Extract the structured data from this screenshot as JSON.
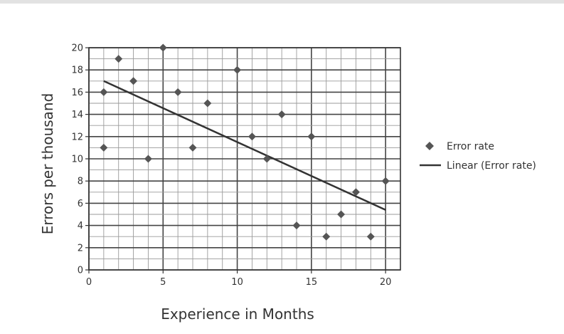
{
  "chart_data": {
    "type": "scatter",
    "xlabel": "Experience in Months",
    "ylabel": "Errors per thousand",
    "xlim": [
      0,
      21
    ],
    "ylim": [
      0,
      20
    ],
    "xticks": [
      0,
      5,
      10,
      15,
      20
    ],
    "yticks": [
      0,
      2,
      4,
      6,
      8,
      10,
      12,
      14,
      16,
      18,
      20
    ],
    "grid": true,
    "legend_position": "right",
    "series": [
      {
        "name": "Error rate",
        "marker": "diamond",
        "color": "#555555",
        "points": [
          {
            "x": 1,
            "y": 16
          },
          {
            "x": 1,
            "y": 11
          },
          {
            "x": 2,
            "y": 19
          },
          {
            "x": 3,
            "y": 17
          },
          {
            "x": 4,
            "y": 10
          },
          {
            "x": 5,
            "y": 20
          },
          {
            "x": 6,
            "y": 16
          },
          {
            "x": 7,
            "y": 11
          },
          {
            "x": 8,
            "y": 15
          },
          {
            "x": 10,
            "y": 18
          },
          {
            "x": 11,
            "y": 12
          },
          {
            "x": 12,
            "y": 10
          },
          {
            "x": 13,
            "y": 14
          },
          {
            "x": 14,
            "y": 4
          },
          {
            "x": 15,
            "y": 12
          },
          {
            "x": 16,
            "y": 3
          },
          {
            "x": 17,
            "y": 5
          },
          {
            "x": 18,
            "y": 7
          },
          {
            "x": 19,
            "y": 3
          },
          {
            "x": 20,
            "y": 8
          }
        ]
      },
      {
        "name": "Linear (Error rate)",
        "type": "line",
        "color": "#333333",
        "points": [
          {
            "x": 1,
            "y": 17
          },
          {
            "x": 20,
            "y": 5.4
          }
        ]
      }
    ]
  }
}
